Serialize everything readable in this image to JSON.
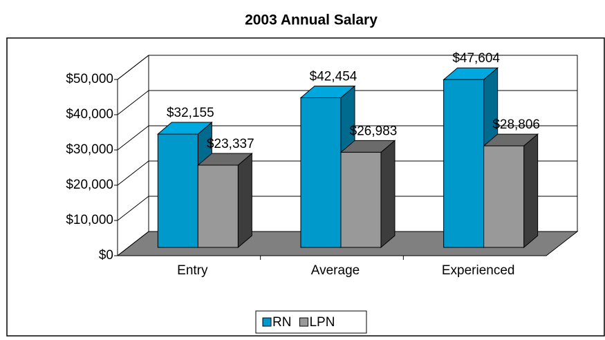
{
  "chart_data": {
    "type": "bar3d",
    "title": "2003 Annual Salary",
    "categories": [
      "Entry",
      "Average",
      "Experienced"
    ],
    "series": [
      {
        "name": "RN",
        "color": "#0099cc",
        "values": [
          32155,
          42454,
          47604
        ],
        "value_labels": [
          "$32,155",
          "$42,454",
          "$47,604"
        ]
      },
      {
        "name": "LPN",
        "color": "#999999",
        "values": [
          23337,
          26983,
          28806
        ],
        "value_labels": [
          "$23,337",
          "$26,983",
          "$28,806"
        ]
      }
    ],
    "ylim": [
      0,
      50000
    ],
    "yticks": [
      {
        "value": 0,
        "label": "$0"
      },
      {
        "value": 10000,
        "label": "$10,000"
      },
      {
        "value": 20000,
        "label": "$20,000"
      },
      {
        "value": 30000,
        "label": "$30,000"
      },
      {
        "value": 40000,
        "label": "$40,000"
      },
      {
        "value": 50000,
        "label": "$50,000"
      }
    ],
    "grid": true,
    "legend": "bottom"
  }
}
